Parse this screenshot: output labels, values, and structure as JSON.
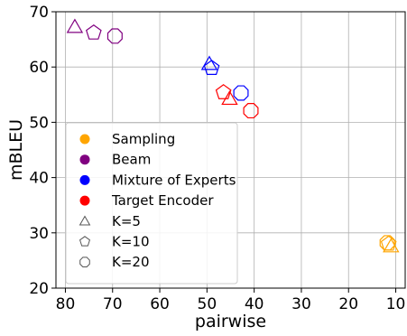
{
  "chart_data": {
    "type": "scatter",
    "xlabel": "pairwise",
    "ylabel": "mBLEU",
    "xlim": [
      82,
      8
    ],
    "ylim": [
      20,
      70
    ],
    "x_ticks": [
      "80",
      "70",
      "60",
      "50",
      "40",
      "30",
      "20",
      "10"
    ],
    "x_tick_values": [
      80,
      70,
      60,
      50,
      40,
      30,
      20,
      10
    ],
    "y_ticks": [
      "20",
      "30",
      "40",
      "50",
      "60",
      "70"
    ],
    "y_tick_values": [
      20,
      30,
      40,
      50,
      60,
      70
    ],
    "grid": true,
    "legend_position": "lower-left",
    "methods": [
      {
        "name": "Sampling",
        "color": "#FFA500"
      },
      {
        "name": "Beam",
        "color": "#800080"
      },
      {
        "name": "Mixture of Experts",
        "color": "#0000FF"
      },
      {
        "name": "Target Encoder",
        "color": "#FF0000"
      }
    ],
    "k_markers": [
      {
        "name": "K=5",
        "marker": "triangle"
      },
      {
        "name": "K=10",
        "marker": "pentagon"
      },
      {
        "name": "K=20",
        "marker": "octagon"
      }
    ],
    "points": [
      {
        "method": "Sampling",
        "k": "K=5",
        "x": 11.0,
        "y": 27.5
      },
      {
        "method": "Sampling",
        "k": "K=10",
        "x": 11.5,
        "y": 28.0
      },
      {
        "method": "Sampling",
        "k": "K=20",
        "x": 11.8,
        "y": 28.2
      },
      {
        "method": "Beam",
        "k": "K=5",
        "x": 78.0,
        "y": 67.2
      },
      {
        "method": "Beam",
        "k": "K=10",
        "x": 74.0,
        "y": 66.2
      },
      {
        "method": "Beam",
        "k": "K=20",
        "x": 69.5,
        "y": 65.6
      },
      {
        "method": "Mixture of Experts",
        "k": "K=5",
        "x": 49.5,
        "y": 60.5
      },
      {
        "method": "Mixture of Experts",
        "k": "K=10",
        "x": 49.0,
        "y": 59.8
      },
      {
        "method": "Mixture of Experts",
        "k": "K=20",
        "x": 42.8,
        "y": 55.3
      },
      {
        "method": "Target Encoder",
        "k": "K=5",
        "x": 45.2,
        "y": 54.2
      },
      {
        "method": "Target Encoder",
        "k": "K=10",
        "x": 46.5,
        "y": 55.4
      },
      {
        "method": "Target Encoder",
        "k": "K=20",
        "x": 40.7,
        "y": 52.1
      }
    ]
  }
}
